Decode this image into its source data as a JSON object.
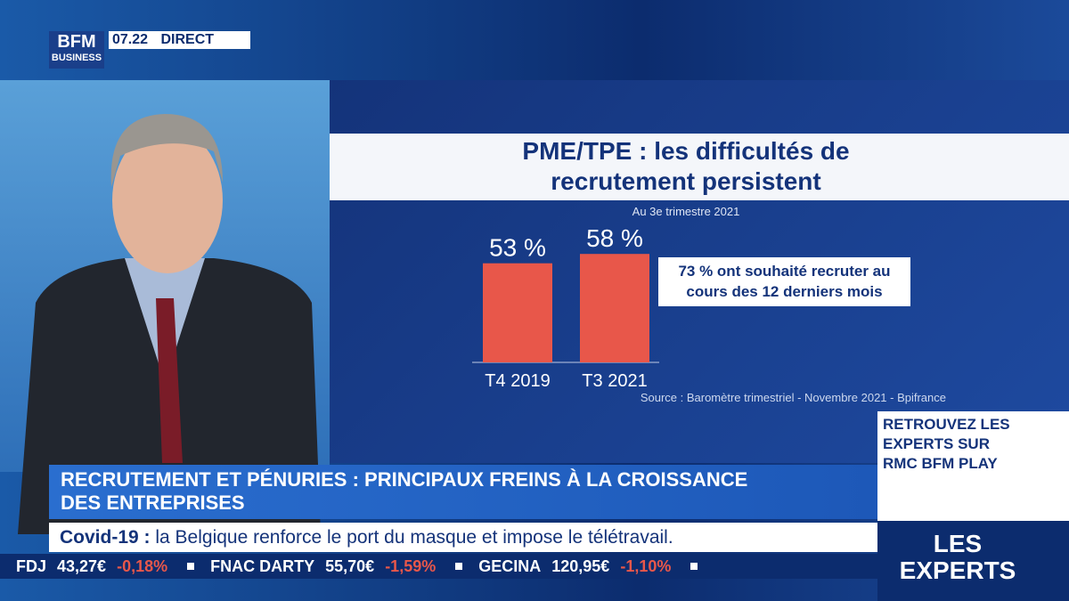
{
  "header": {
    "logo_top": "BFM",
    "logo_bottom": "BUSINESS",
    "time": "07.22",
    "live": "DIRECT"
  },
  "chart_data": {
    "type": "bar",
    "title": "PME/TPE : les difficultés de recrutement persistent",
    "subtitle": "Au 3e trimestre 2021",
    "categories": [
      "T4 2019",
      "T3 2021"
    ],
    "values": [
      53,
      58
    ],
    "value_labels": [
      "53 %",
      "58 %"
    ],
    "color": "#e8574a",
    "annotation": "73 % ont souhaité recruter au cours des 12 derniers mois",
    "source": "Source : Baromètre trimestriel - Novembre 2021 - Bpifrance"
  },
  "banner": {
    "headline": "RECRUTEMENT ET PÉNURIES : PRINCIPAUX FREINS À LA CROISSANCE DES ENTREPRISES",
    "ticker_label": "Covid-19 :",
    "ticker_text": "la Belgique renforce le port du masque et impose le télétravail."
  },
  "stocks": [
    {
      "name": "FDJ",
      "price": "43,27€",
      "change": "-0,18%"
    },
    {
      "name": "FNAC DARTY",
      "price": "55,70€",
      "change": "-1,59%"
    },
    {
      "name": "GECINA",
      "price": "120,95€",
      "change": "-1,10%"
    }
  ],
  "promo": {
    "text": "RETROUVEZ LES EXPERTS SUR RMC BFM PLAY",
    "show": "LES EXPERTS"
  }
}
